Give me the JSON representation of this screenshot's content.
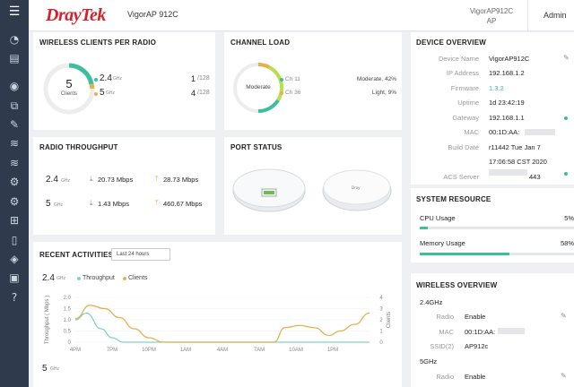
{
  "header": {
    "logo": "DrayTek",
    "model": "VigorAP 912C",
    "device_name": "VigorAP912C AP",
    "admin": "Admin"
  },
  "sidebar": {
    "icons": [
      "menu-icon",
      "dashboard-icon",
      "device-icon",
      "wireless-icon",
      "network-icon",
      "tools-icon",
      "wifi-icon",
      "wifi-icon",
      "settings-icon",
      "settings-icon",
      "apps-icon",
      "mobile-icon",
      "shield-icon",
      "monitor-icon",
      "help-icon"
    ]
  },
  "clients_per_radio": {
    "title": "WIRELESS CLIENTS PER RADIO",
    "total": "5",
    "total_label": "Clients",
    "radios": [
      {
        "band": "2.4",
        "unit": "GHz",
        "count": "1",
        "max": "/128"
      },
      {
        "band": "5",
        "unit": "GHz",
        "count": "4",
        "max": "/128"
      }
    ]
  },
  "channel_load": {
    "title": "CHANNEL LOAD",
    "level": "Moderate",
    "channels": [
      {
        "name": "Ch 11",
        "status": "Moderate, 42%"
      },
      {
        "name": "Ch 36",
        "status": "Light, 9%"
      }
    ]
  },
  "radio_throughput": {
    "title": "RADIO THROUGHPUT",
    "rows": [
      {
        "band": "2.4",
        "unit": "GHz",
        "down": "20.73 Mbps",
        "up": "28.73 Mbps"
      },
      {
        "band": "5",
        "unit": "GHz",
        "down": "1.43 Mbps",
        "up": "460.67 Mbps"
      }
    ]
  },
  "port_status": {
    "title": "PORT STATUS"
  },
  "recent": {
    "title": "RECENT ACTIVITIES",
    "range": "Last 24 hours",
    "band": "2.4",
    "band_unit": "GHz",
    "band2": "5",
    "legend_throughput": "Throughput",
    "legend_clients": "Clients",
    "y_label_left": "Throughput ( Mbps )",
    "y_label_right": "Clients"
  },
  "chart_data": {
    "type": "line",
    "x": [
      "4PM",
      "7PM",
      "10PM",
      "1AM",
      "4AM",
      "7AM",
      "10AM",
      "1PM"
    ],
    "y_left_ticks": [
      "2.0",
      "1.5",
      "1.0",
      "0.5",
      "0"
    ],
    "y_right_ticks": [
      "4",
      "3",
      "2",
      "1",
      "0"
    ],
    "series": [
      {
        "name": "Throughput",
        "color": "#7fd3c2",
        "axis": "left",
        "points": [
          [
            0,
            1.0
          ],
          [
            0.3,
            1.3
          ],
          [
            0.7,
            0.6
          ],
          [
            1.0,
            0.2
          ],
          [
            1.3,
            0
          ],
          [
            3.0,
            0
          ],
          [
            8,
            0
          ]
        ]
      },
      {
        "name": "Clients",
        "color": "#e2b24f",
        "axis": "right",
        "points": [
          [
            0,
            2.1
          ],
          [
            0.4,
            3.3
          ],
          [
            0.8,
            3.0
          ],
          [
            1.2,
            2.2
          ],
          [
            1.6,
            1.2
          ],
          [
            2.0,
            0.4
          ],
          [
            2.4,
            0
          ],
          [
            5.4,
            0
          ],
          [
            5.7,
            1.3
          ],
          [
            6.1,
            1.5
          ],
          [
            6.5,
            1.3
          ],
          [
            6.9,
            0.6
          ],
          [
            7.2,
            1.0
          ],
          [
            7.6,
            1.6
          ],
          [
            8.0,
            2.6
          ]
        ]
      }
    ]
  },
  "device_overview": {
    "title": "DEVICE OVERVIEW",
    "rows": [
      {
        "label": "Device Name",
        "value": "VigorAP912C"
      },
      {
        "label": "IP Address",
        "value": "192.168.1.2"
      },
      {
        "label": "Firmware",
        "value": "1.3.2"
      },
      {
        "label": "Uptime",
        "value": "1d 23:42:19"
      },
      {
        "label": "Gateway",
        "value": "192.168.1.1"
      },
      {
        "label": "MAC",
        "value": "00:1D:AA:"
      },
      {
        "label": "Build Date",
        "value": "r11442 Tue Jan 7"
      },
      {
        "label": "",
        "value": "17:06:58 CST 2020"
      },
      {
        "label": "ACS Server",
        "value": "443"
      }
    ]
  },
  "system_resource": {
    "title": "SYSTEM RESOURCE",
    "items": [
      {
        "label": "CPU Usage",
        "value": "5%",
        "fraction": 0.05
      },
      {
        "label": "Memory Usage",
        "value": "58%",
        "fraction": 0.58
      }
    ]
  },
  "wireless_overview": {
    "title": "WIRELESS OVERVIEW",
    "band1": "2.4GHz",
    "band2": "5GHz",
    "rows": [
      {
        "label": "Radio",
        "value": "Enable"
      },
      {
        "label": "MAC",
        "value": "00:1D:AA:"
      },
      {
        "label": "SSID(2)",
        "value": "AP912c"
      }
    ],
    "band2_radio_label": "Radio",
    "band2_radio_value": "Enable"
  },
  "colors": {
    "accent": "#3dbf9e",
    "orange": "#e2b24f",
    "brand_red": "#d5222a",
    "sidebar": "#2f3b4c"
  }
}
